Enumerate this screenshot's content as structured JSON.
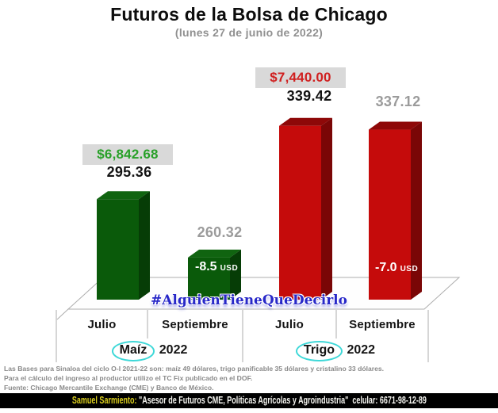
{
  "chart_data": {
    "type": "bar",
    "style": "3d-column",
    "title": "Futuros de la Bolsa de Chicago",
    "subtitle": "(lunes 27 de junio de 2022)",
    "categories": [
      "Julio",
      "Septiembre",
      "Julio",
      "Septiembre"
    ],
    "value_axis": {
      "visible": false,
      "implied_min": 235
    },
    "legend": "none",
    "groups": [
      {
        "id": "maiz",
        "label": "Maíz 2022",
        "circled_word": "Maíz",
        "rest_label": "2022",
        "colors": {
          "front": "#0A5A0A",
          "top": "#106410",
          "side": "#063D06"
        },
        "bars": [
          {
            "category": "Julio",
            "value": 295.36,
            "price_label": "$6,842.68",
            "price_label_color": "#28A028",
            "value_label_color": "#141414"
          },
          {
            "category": "Septiembre",
            "value": 260.32,
            "value_label_color": "#9B9B9B",
            "on_bar_note": "-8.5",
            "on_bar_note_unit": "USD"
          }
        ]
      },
      {
        "id": "trigo",
        "label": "Trigo 2022",
        "circled_word": "Trigo",
        "rest_label": "2022",
        "colors": {
          "front": "#C50B0B",
          "top": "#8E0808",
          "side": "#7A0606"
        },
        "bars": [
          {
            "category": "Julio",
            "value": 339.42,
            "price_label": "$7,440.00",
            "price_label_color": "#D02020",
            "value_label_color": "#141414"
          },
          {
            "category": "Septiembre",
            "value": 337.12,
            "value_label_color": "#9B9B9B",
            "on_bar_note": "-7.0",
            "on_bar_note_unit": "USD"
          }
        ]
      }
    ],
    "price_label_bg": "#D9D9D9",
    "circle_annotation_color": "#3ED8D8"
  },
  "watermark": "#AlguienTieneQueDecirlo",
  "watermark_color": "#2828C8",
  "footnotes": {
    "lines": [
      "Las Bases para Sinaloa del ciclo O-I 2021-22 son: maíz 49 dólares, trigo panificable 35 dólares y cristalino 33 dólares.",
      "Para el cálculo del ingreso al productor utilizo el TC Fix publicado en el DOF.",
      "Fuente: Chicago Mercantile Exchange (CME) y Banco de México."
    ]
  },
  "footer": {
    "name": "Samuel Sarmiento:",
    "description": "\"Asesor de Futuros CME, Políticas Agrícolas y Agroindustria\"  celular: 6671-98-12-89"
  }
}
